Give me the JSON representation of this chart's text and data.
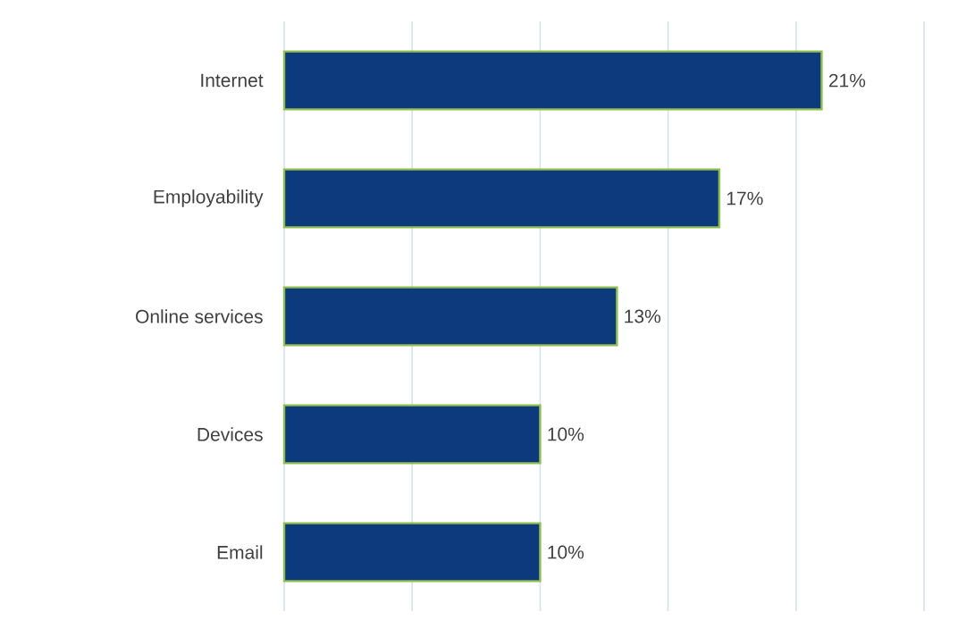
{
  "chart_data": {
    "type": "bar",
    "orientation": "horizontal",
    "categories": [
      "Internet",
      "Employability",
      "Online services",
      "Devices",
      "Email"
    ],
    "values": [
      21,
      17,
      13,
      10,
      10
    ],
    "value_labels": [
      "21%",
      "17%",
      "13%",
      "10%",
      "10%"
    ],
    "color": "#0d3a7c",
    "xlim": [
      0,
      25
    ],
    "xticks": [
      {
        "value": 0,
        "label": null
      },
      {
        "value": 5,
        "label": null
      },
      {
        "value": 10,
        "label": null
      },
      {
        "value": 15,
        "label": null
      },
      {
        "value": 20,
        "label": null
      },
      {
        "value": 25,
        "label": null
      }
    ],
    "grid": "x",
    "tick_labels": "y"
  }
}
